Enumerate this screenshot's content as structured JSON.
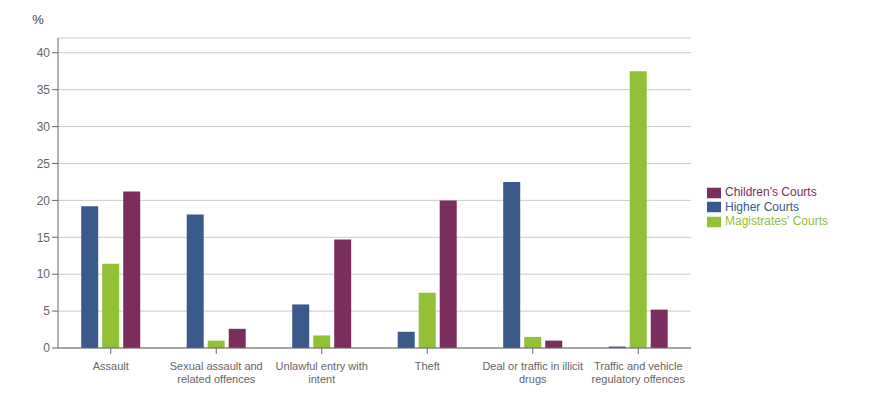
{
  "chart_data": {
    "type": "bar",
    "ylabel": "%",
    "categories": [
      "Assault",
      "Sexual assault and\nrelated offences",
      "Unlawful entry with\nintent",
      "Theft",
      "Deal or traffic in illicit\ndrugs",
      "Traffic and vehicle\nregulatory offences"
    ],
    "series": [
      {
        "name": "Higher Courts",
        "color": "#3a5a8c",
        "values": [
          19.2,
          18.1,
          5.9,
          2.2,
          22.5,
          0.2
        ]
      },
      {
        "name": "Magistrates' Courts",
        "color": "#92c036",
        "values": [
          11.4,
          1.0,
          1.7,
          7.5,
          1.5,
          37.5
        ]
      },
      {
        "name": "Children's Courts",
        "color": "#7b2d5e",
        "values": [
          21.2,
          2.6,
          14.7,
          20.0,
          1.0,
          5.2
        ]
      }
    ],
    "ylim": [
      0,
      42
    ],
    "yticks": [
      0,
      5,
      10,
      15,
      20,
      25,
      30,
      35,
      40
    ],
    "grid": true,
    "legend": "right"
  }
}
